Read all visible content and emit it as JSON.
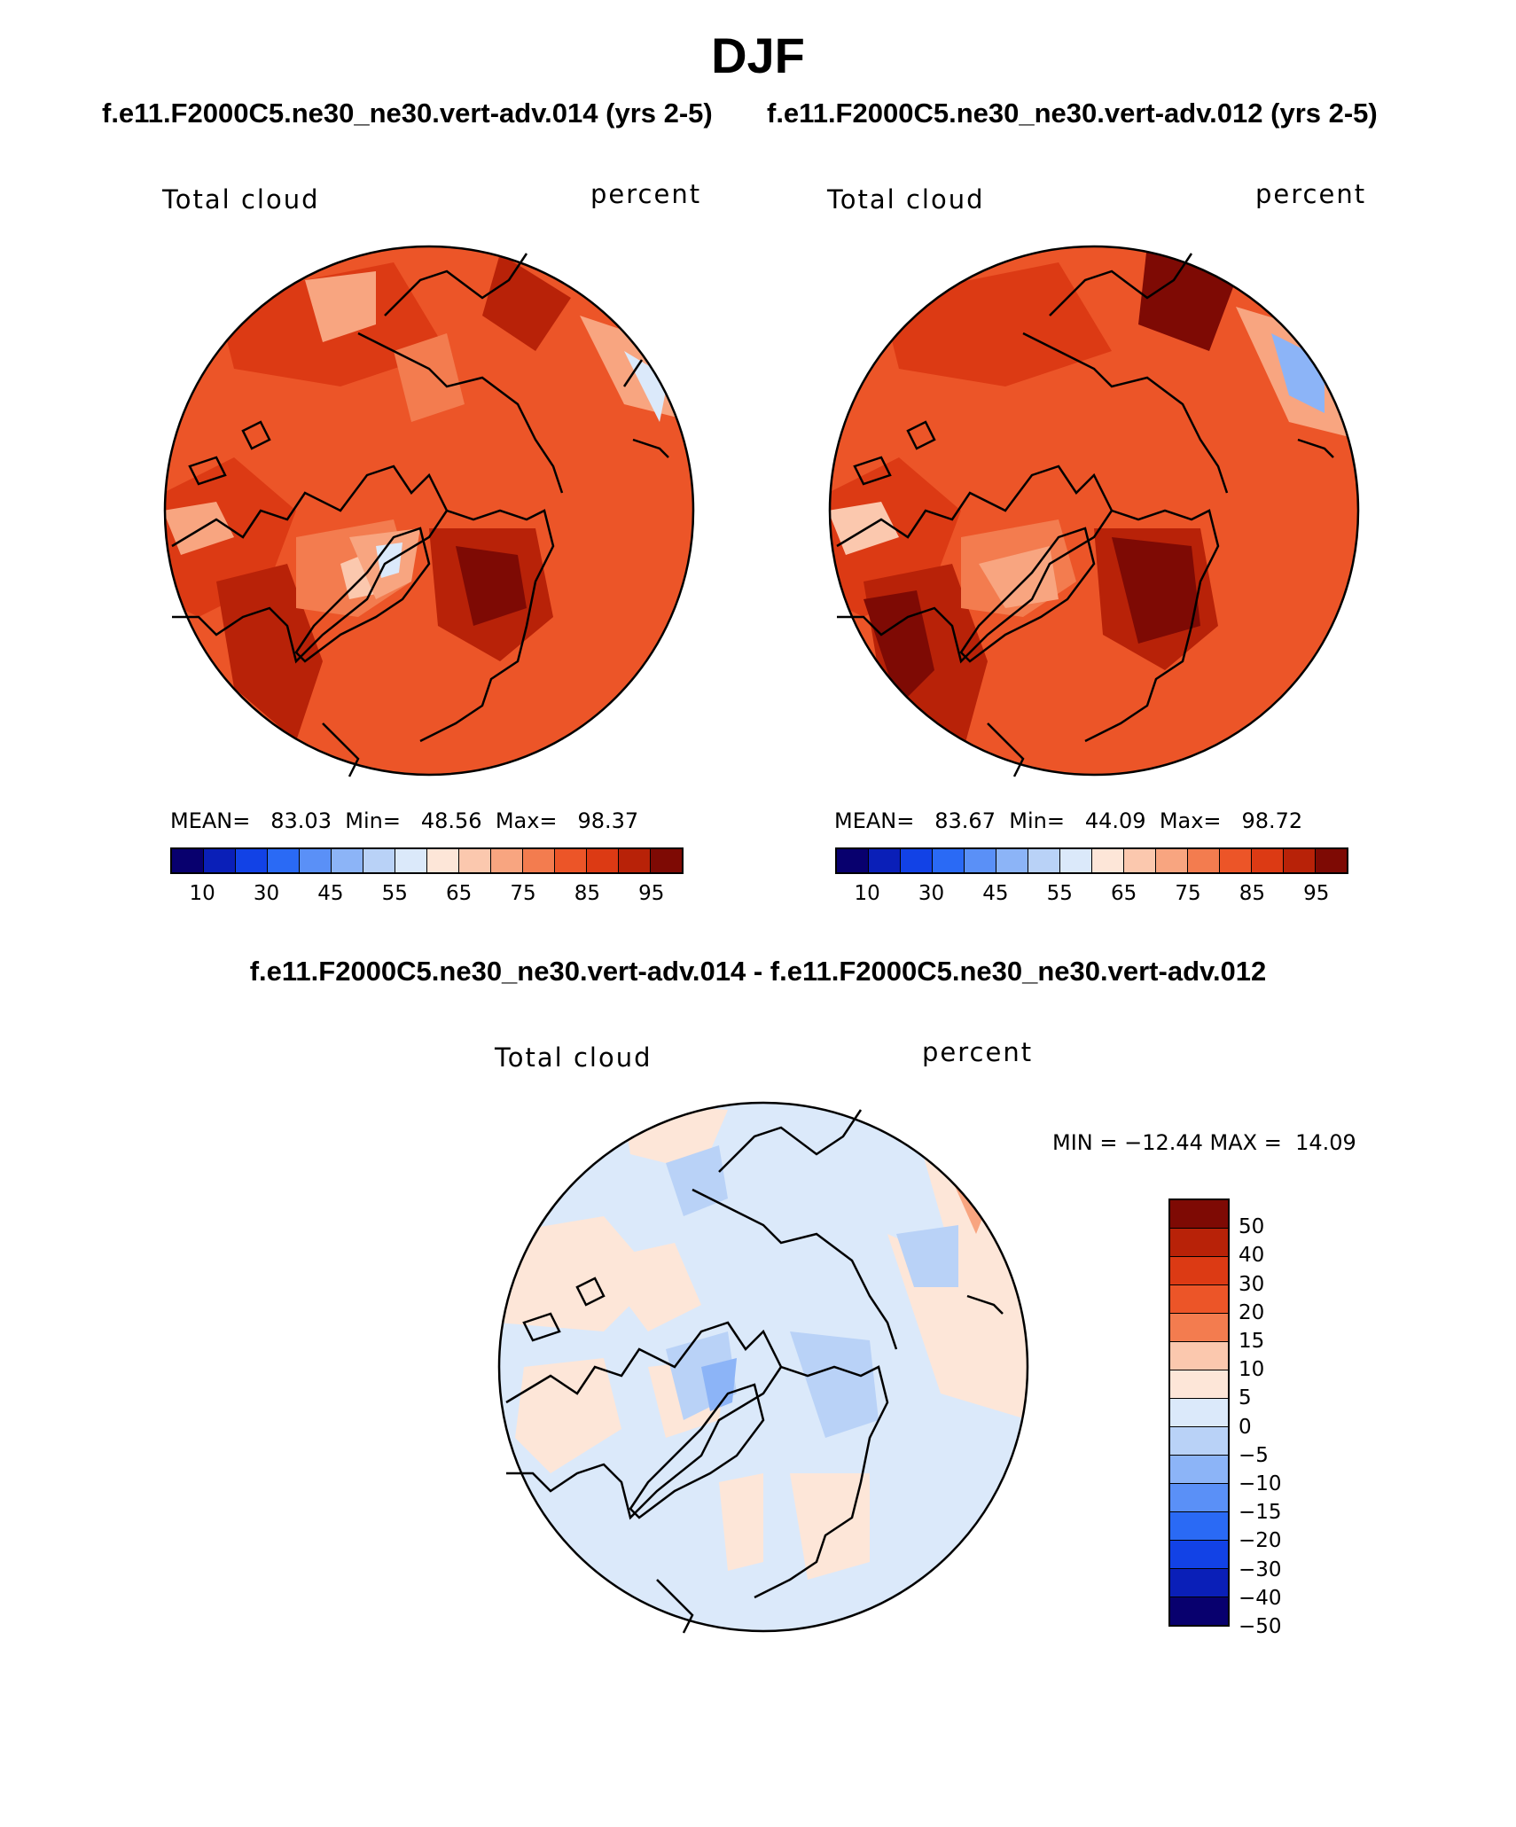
{
  "header": {
    "title": "DJF",
    "case_left": "f.e11.F2000C5.ne30_ne30.vert-adv.014 (yrs 2-5)",
    "case_right": "f.e11.F2000C5.ne30_ne30.vert-adv.012 (yrs 2-5)",
    "diff_title": "f.e11.F2000C5.ne30_ne30.vert-adv.014 - f.e11.F2000C5.ne30_ne30.vert-adv.012"
  },
  "colors": {
    "abs_scale": [
      "#08006e",
      "#0a1fb8",
      "#1242e6",
      "#2a6af5",
      "#5a90f7",
      "#8cb4f7",
      "#b9d2f7",
      "#dbe9fa",
      "#fde6d8",
      "#fbc8ae",
      "#f8a580",
      "#f37c4f",
      "#ec5528",
      "#dc3a14",
      "#b82208",
      "#7e0a04"
    ],
    "diff_scale": [
      "#7e0a04",
      "#b82208",
      "#dc3a14",
      "#ec5528",
      "#f37c4f",
      "#fbc8ae",
      "#fde6d8",
      "#dbe9fa",
      "#b9d2f7",
      "#8cb4f7",
      "#5a90f7",
      "#2a6af5",
      "#1242e6",
      "#0a1fb8",
      "#08006e"
    ]
  },
  "chart_data": [
    {
      "type": "heatmap",
      "projection": "north polar stereographic",
      "variable": "Total cloud",
      "units": "percent",
      "case": "f.e11.F2000C5.ne30_ne30.vert-adv.014 (yrs 2-5)",
      "stats": {
        "mean_label": "MEAN=",
        "mean": "83.03",
        "min_label": "Min=",
        "min": "48.56",
        "max_label": "Max=",
        "max": "98.37"
      },
      "colorbar_ticks": [
        "10",
        "30",
        "45",
        "55",
        "65",
        "75",
        "85",
        "95"
      ]
    },
    {
      "type": "heatmap",
      "projection": "north polar stereographic",
      "variable": "Total cloud",
      "units": "percent",
      "case": "f.e11.F2000C5.ne30_ne30.vert-adv.012 (yrs 2-5)",
      "stats": {
        "mean_label": "MEAN=",
        "mean": "83.67",
        "min_label": "Min=",
        "min": "44.09",
        "max_label": "Max=",
        "max": "98.72"
      },
      "colorbar_ticks": [
        "10",
        "30",
        "45",
        "55",
        "65",
        "75",
        "85",
        "95"
      ]
    },
    {
      "type": "heatmap",
      "projection": "north polar stereographic",
      "variable": "Total cloud",
      "units": "percent",
      "case": "f.e11.F2000C5.ne30_ne30.vert-adv.014 - f.e11.F2000C5.ne30_ne30.vert-adv.012",
      "stats": {
        "text": "MIN = −12.44 MAX =  14.09"
      },
      "colorbar_levels": [
        "50",
        "40",
        "30",
        "20",
        "15",
        "10",
        "5",
        "0",
        "−5",
        "−10",
        "−15",
        "−20",
        "−30",
        "−40",
        "−50"
      ]
    }
  ]
}
